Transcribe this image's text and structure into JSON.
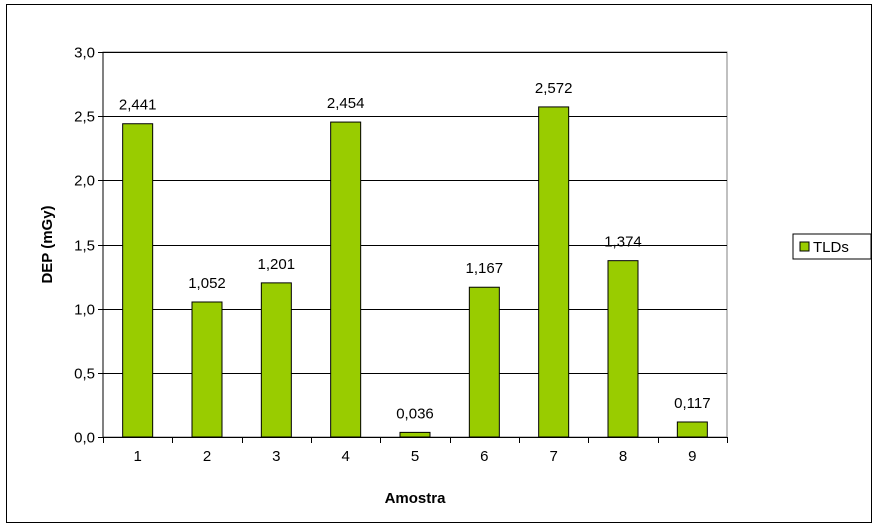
{
  "chart_data": {
    "type": "bar",
    "categories": [
      "1",
      "2",
      "3",
      "4",
      "5",
      "6",
      "7",
      "8",
      "9"
    ],
    "series": [
      {
        "name": "TLDs",
        "values": [
          2.441,
          1.052,
          1.201,
          2.454,
          0.036,
          1.167,
          2.572,
          1.374,
          0.117
        ],
        "labels": [
          "2,441",
          "1,052",
          "1,201",
          "2,454",
          "0,036",
          "1,167",
          "2,572",
          "1,374",
          "0,117"
        ],
        "color": "#99cc00"
      }
    ],
    "xlabel": "Amostra",
    "ylabel": "DEP (mGy)",
    "ylim": [
      0,
      3.0
    ],
    "yticks": [
      0,
      0.5,
      1.0,
      1.5,
      2.0,
      2.5,
      3.0
    ],
    "ytick_labels": [
      "0,0",
      "0,5",
      "1,0",
      "1,5",
      "2,0",
      "2,5",
      "3,0"
    ],
    "grid": true,
    "legend_position": "right"
  }
}
